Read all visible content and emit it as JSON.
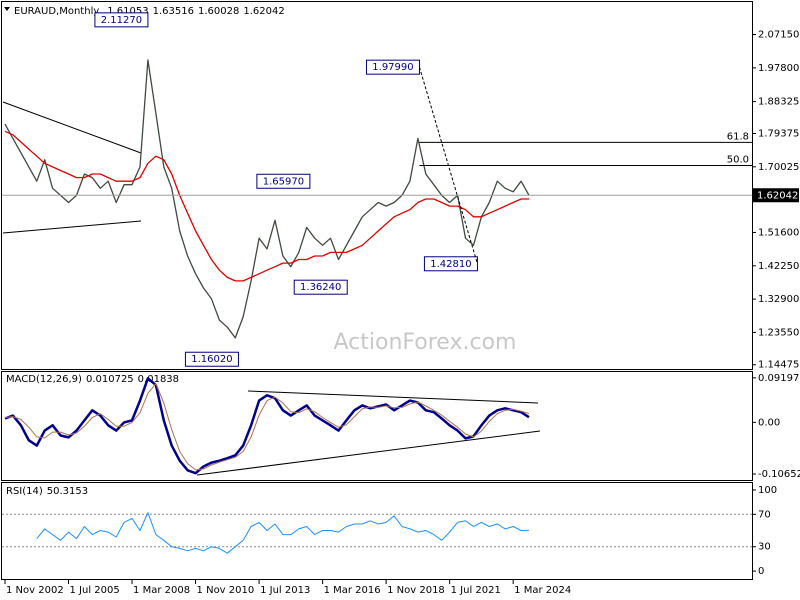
{
  "chart_data": [
    {
      "type": "line",
      "title": "EURAUD,Monthly",
      "ohlc": [
        1.61053,
        1.63516,
        1.60028,
        1.62042
      ],
      "series": [
        {
          "color": "#3e4b3e",
          "values": [
            1.82,
            1.78,
            1.74,
            1.7,
            1.66,
            1.72,
            1.64,
            1.62,
            1.6,
            1.62,
            1.68,
            1.67,
            1.64,
            1.66,
            1.6,
            1.65,
            1.65,
            1.7,
            2.0,
            1.85,
            1.7,
            1.64,
            1.52,
            1.45,
            1.4,
            1.36,
            1.33,
            1.27,
            1.25,
            1.22,
            1.28,
            1.38,
            1.5,
            1.47,
            1.55,
            1.45,
            1.42,
            1.46,
            1.53,
            1.5,
            1.48,
            1.5,
            1.44,
            1.48,
            1.52,
            1.56,
            1.58,
            1.6,
            1.59,
            1.6,
            1.62,
            1.66,
            1.78,
            1.68,
            1.65,
            1.62,
            1.6,
            1.62,
            1.5,
            1.48,
            1.56,
            1.6,
            1.66,
            1.64,
            1.63,
            1.66,
            1.62042
          ]
        },
        {
          "color": "#e00000",
          "values": [
            1.8,
            1.79,
            1.77,
            1.75,
            1.73,
            1.71,
            1.7,
            1.69,
            1.68,
            1.67,
            1.67,
            1.68,
            1.68,
            1.67,
            1.66,
            1.66,
            1.66,
            1.67,
            1.71,
            1.73,
            1.72,
            1.68,
            1.62,
            1.57,
            1.52,
            1.48,
            1.44,
            1.41,
            1.39,
            1.38,
            1.38,
            1.39,
            1.4,
            1.41,
            1.42,
            1.43,
            1.43,
            1.44,
            1.44,
            1.45,
            1.45,
            1.46,
            1.46,
            1.46,
            1.47,
            1.48,
            1.5,
            1.52,
            1.54,
            1.56,
            1.57,
            1.58,
            1.6,
            1.61,
            1.61,
            1.6,
            1.59,
            1.59,
            1.58,
            1.56,
            1.56,
            1.57,
            1.58,
            1.59,
            1.6,
            1.61,
            1.61
          ]
        }
      ],
      "ylim": [
        1.13,
        2.16
      ],
      "yticks": [
        {
          "value": 2.0715,
          "label": "2.07150"
        },
        {
          "value": 1.978,
          "label": "1.97800"
        },
        {
          "value": 1.88325,
          "label": "1.88325"
        },
        {
          "value": 1.79375,
          "label": "1.79375"
        },
        {
          "value": 1.70025,
          "label": "1.70025"
        },
        {
          "value": 1.516,
          "label": "1.51600"
        },
        {
          "value": 1.4225,
          "label": "1.42250"
        },
        {
          "value": 1.329,
          "label": "1.32900"
        },
        {
          "value": 1.2355,
          "label": "1.23550"
        },
        {
          "value": 1.14475,
          "label": "1.14475"
        }
      ],
      "annotations": [
        {
          "value": 2.1127,
          "label": "2.11270"
        },
        {
          "value": 1.9799,
          "label": "1.97990"
        },
        {
          "value": 1.6597,
          "label": "1.65970"
        },
        {
          "value": 1.3624,
          "label": "1.36240"
        },
        {
          "value": 1.4281,
          "label": "1.42810"
        },
        {
          "value": 1.1602,
          "label": "1.16020"
        }
      ],
      "fib_levels": [
        {
          "text": "61.8",
          "price": 1.769
        },
        {
          "text": "50.0",
          "price": 1.704
        }
      ],
      "watermark": "ActionForex.com",
      "grid": false
    },
    {
      "type": "line",
      "title": "MACD(12,26,9)",
      "readings": [
        0.010725,
        0.01838
      ],
      "series": [
        {
          "color": "#00008b",
          "values": [
            0.008,
            0.014,
            -0.006,
            -0.037,
            -0.048,
            -0.017,
            -0.006,
            -0.027,
            -0.031,
            -0.017,
            0.004,
            0.025,
            0.014,
            -0.006,
            -0.017,
            0,
            0.004,
            0.045,
            0.091,
            0.077,
            0.004,
            -0.048,
            -0.079,
            -0.099,
            -0.105,
            -0.091,
            -0.083,
            -0.079,
            -0.074,
            -0.068,
            -0.048,
            -0.006,
            0.045,
            0.056,
            0.05,
            0.025,
            0.014,
            0.025,
            0.035,
            0.014,
            0.004,
            -0.006,
            -0.017,
            0.004,
            0.025,
            0.035,
            0.029,
            0.033,
            0.037,
            0.025,
            0.035,
            0.045,
            0.041,
            0.025,
            0.021,
            0.008,
            -0.006,
            -0.017,
            -0.033,
            -0.029,
            -0.006,
            0.014,
            0.025,
            0.029,
            0.025,
            0.021,
            0.010725
          ]
        },
        {
          "color": "#b07050",
          "values": [
            0.01,
            0.012,
            0.006,
            -0.01,
            -0.03,
            -0.032,
            -0.02,
            -0.02,
            -0.026,
            -0.022,
            -0.008,
            0.01,
            0.018,
            0.006,
            -0.008,
            -0.008,
            0,
            0.02,
            0.06,
            0.08,
            0.04,
            -0.015,
            -0.06,
            -0.085,
            -0.098,
            -0.096,
            -0.088,
            -0.082,
            -0.077,
            -0.072,
            -0.06,
            -0.03,
            0.015,
            0.045,
            0.052,
            0.04,
            0.022,
            0.02,
            0.028,
            0.022,
            0.01,
            0,
            -0.01,
            -0.005,
            0.012,
            0.028,
            0.032,
            0.031,
            0.034,
            0.03,
            0.031,
            0.038,
            0.042,
            0.034,
            0.025,
            0.015,
            0.002,
            -0.01,
            -0.024,
            -0.03,
            -0.018,
            0.002,
            0.018,
            0.025,
            0.027,
            0.023,
            0.01838
          ]
        }
      ],
      "ylim": [
        -0.121,
        0.104
      ],
      "yticks": [
        0.091976,
        {
          "value": 0,
          "label": "0.00"
        },
        -0.106528
      ],
      "grid": false
    },
    {
      "type": "line",
      "title": "RSI(14)",
      "readings": [
        50.3153
      ],
      "categories": [
        "1 Nov 2002",
        null,
        null,
        null,
        null,
        null,
        null,
        null,
        "1 Jul 2005",
        null,
        null,
        null,
        null,
        null,
        null,
        null,
        "1 Mar 2008",
        null,
        null,
        null,
        null,
        null,
        null,
        null,
        "1 Nov 2010",
        null,
        null,
        null,
        null,
        null,
        null,
        null,
        "1 Jul 2013",
        null,
        null,
        null,
        null,
        null,
        null,
        null,
        "1 Mar 2016",
        null,
        null,
        null,
        null,
        null,
        null,
        null,
        "1 Nov 2018",
        null,
        null,
        null,
        null,
        null,
        null,
        null,
        "1 Jul 2021",
        null,
        null,
        null,
        null,
        null,
        null,
        null,
        "1 Mar 2024",
        null,
        null
      ],
      "series": [
        {
          "color": "#1e90ff",
          "values": [
            null,
            null,
            null,
            null,
            40,
            52,
            45,
            38,
            48,
            40,
            55,
            45,
            50,
            48,
            42,
            60,
            65,
            50,
            72,
            45,
            38,
            30,
            28,
            25,
            28,
            25,
            30,
            28,
            22,
            30,
            38,
            55,
            60,
            50,
            58,
            45,
            45,
            52,
            55,
            45,
            50,
            50,
            48,
            55,
            58,
            58,
            62,
            58,
            60,
            68,
            55,
            52,
            48,
            50,
            45,
            38,
            48,
            60,
            62,
            55,
            60,
            55,
            58,
            52,
            55,
            50,
            50.3153
          ]
        }
      ],
      "ylim": [
        -11,
        108.6
      ],
      "yticks": [
        100,
        70,
        30,
        0
      ],
      "grid": true
    }
  ]
}
